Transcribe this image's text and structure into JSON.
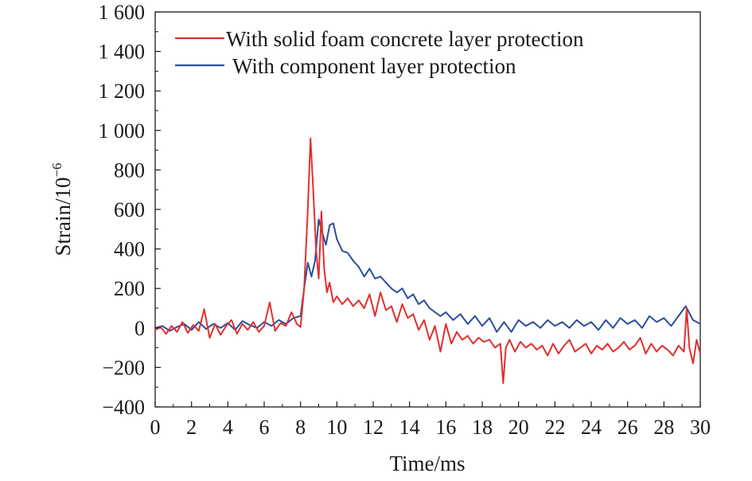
{
  "chart_data": {
    "type": "line",
    "title": "",
    "xlabel": "Time/ms",
    "ylabel": "Strain/10",
    "ylabel_exponent": "−6",
    "xlim": [
      0,
      30
    ],
    "ylim": [
      -400,
      1600
    ],
    "grid": false,
    "legend_position": "top-left",
    "x_ticks": [
      0,
      2,
      4,
      6,
      8,
      10,
      12,
      14,
      16,
      18,
      20,
      22,
      24,
      26,
      28,
      30
    ],
    "x_tick_labels": [
      "0",
      "2",
      "4",
      "6",
      "8",
      "10",
      "12",
      "14",
      "16",
      "18",
      "20",
      "22",
      "24",
      "26",
      "28",
      "30"
    ],
    "y_ticks": [
      -400,
      -200,
      0,
      200,
      400,
      600,
      800,
      1000,
      1200,
      1400,
      1600
    ],
    "y_tick_labels": [
      "−400",
      "−200",
      "0",
      "200",
      "400",
      "600",
      "800",
      "1 000",
      "1 200",
      "1 400",
      "1 600"
    ],
    "series": [
      {
        "name": "With solid foam concrete layer protection",
        "color": "#e03030",
        "x": [
          0,
          0.3,
          0.6,
          0.9,
          1.2,
          1.5,
          1.8,
          2.1,
          2.4,
          2.7,
          3.0,
          3.3,
          3.6,
          3.9,
          4.2,
          4.5,
          4.8,
          5.1,
          5.4,
          5.7,
          6.0,
          6.3,
          6.6,
          6.9,
          7.2,
          7.5,
          7.8,
          8.0,
          8.2,
          8.4,
          8.55,
          8.7,
          8.85,
          9.0,
          9.15,
          9.3,
          9.45,
          9.6,
          9.8,
          10.0,
          10.3,
          10.6,
          10.9,
          11.2,
          11.5,
          11.8,
          12.1,
          12.4,
          12.7,
          13.0,
          13.3,
          13.6,
          13.9,
          14.2,
          14.5,
          14.8,
          15.1,
          15.4,
          15.7,
          16.0,
          16.3,
          16.6,
          16.9,
          17.2,
          17.5,
          17.8,
          18.1,
          18.4,
          18.7,
          19.0,
          19.15,
          19.3,
          19.5,
          19.8,
          20.1,
          20.4,
          20.7,
          21.0,
          21.3,
          21.6,
          21.9,
          22.2,
          22.5,
          22.8,
          23.1,
          23.4,
          23.7,
          24.0,
          24.3,
          24.6,
          24.9,
          25.2,
          25.5,
          25.8,
          26.1,
          26.4,
          26.7,
          27.0,
          27.3,
          27.6,
          27.9,
          28.2,
          28.5,
          28.8,
          29.1,
          29.25,
          29.4,
          29.6,
          29.8,
          30.0
        ],
        "y": [
          -10,
          5,
          -30,
          10,
          -20,
          30,
          -25,
          15,
          -15,
          95,
          -50,
          20,
          -35,
          10,
          40,
          -30,
          20,
          -10,
          30,
          -20,
          10,
          130,
          -15,
          25,
          10,
          80,
          20,
          5,
          200,
          600,
          960,
          700,
          400,
          250,
          590,
          300,
          180,
          230,
          130,
          160,
          120,
          150,
          110,
          140,
          100,
          170,
          60,
          180,
          90,
          110,
          30,
          120,
          50,
          70,
          -10,
          40,
          -60,
          10,
          -120,
          20,
          -80,
          -20,
          -60,
          -40,
          -80,
          -50,
          -70,
          -60,
          -100,
          -80,
          -280,
          -100,
          -60,
          -120,
          -70,
          -100,
          -80,
          -110,
          -90,
          -140,
          -80,
          -130,
          -90,
          -60,
          -120,
          -100,
          -80,
          -130,
          -90,
          -110,
          -80,
          -120,
          -100,
          -70,
          -110,
          -90,
          -50,
          -130,
          -80,
          -120,
          -90,
          -110,
          -140,
          -90,
          -120,
          100,
          -100,
          -180,
          -60,
          -130
        ]
      },
      {
        "name": "With component layer protection",
        "color": "#2a4f9c",
        "x": [
          0,
          0.4,
          0.8,
          1.2,
          1.6,
          2.0,
          2.4,
          2.8,
          3.2,
          3.6,
          4.0,
          4.4,
          4.8,
          5.2,
          5.6,
          6.0,
          6.4,
          6.8,
          7.2,
          7.6,
          8.0,
          8.2,
          8.4,
          8.6,
          8.8,
          9.0,
          9.2,
          9.4,
          9.6,
          9.8,
          10.0,
          10.3,
          10.6,
          10.9,
          11.2,
          11.5,
          11.8,
          12.1,
          12.4,
          12.7,
          13.0,
          13.3,
          13.6,
          13.9,
          14.2,
          14.5,
          14.8,
          15.1,
          15.4,
          15.7,
          16.0,
          16.4,
          16.8,
          17.2,
          17.6,
          18.0,
          18.4,
          18.8,
          19.2,
          19.6,
          20.0,
          20.4,
          20.8,
          21.2,
          21.6,
          22.0,
          22.4,
          22.8,
          23.2,
          23.6,
          24.0,
          24.4,
          24.8,
          25.2,
          25.6,
          26.0,
          26.4,
          26.8,
          27.2,
          27.6,
          28.0,
          28.4,
          28.8,
          29.2,
          29.6,
          30.0
        ],
        "y": [
          0,
          10,
          -15,
          5,
          20,
          -10,
          30,
          -5,
          20,
          0,
          25,
          -10,
          35,
          15,
          0,
          30,
          10,
          40,
          20,
          50,
          60,
          200,
          330,
          260,
          340,
          550,
          480,
          420,
          520,
          530,
          450,
          390,
          380,
          340,
          310,
          260,
          300,
          250,
          260,
          230,
          200,
          180,
          200,
          150,
          170,
          120,
          140,
          100,
          80,
          60,
          80,
          40,
          70,
          20,
          60,
          10,
          50,
          -20,
          30,
          -20,
          40,
          10,
          30,
          0,
          40,
          10,
          30,
          0,
          40,
          10,
          30,
          -10,
          40,
          0,
          50,
          20,
          40,
          0,
          60,
          30,
          50,
          10,
          60,
          110,
          40,
          20
        ]
      }
    ]
  }
}
